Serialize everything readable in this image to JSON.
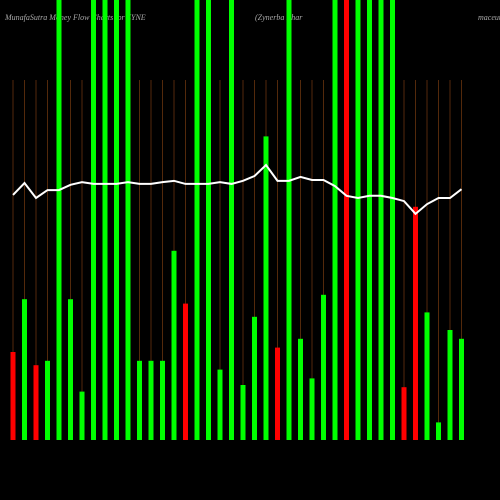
{
  "chart_data": {
    "type": "bar",
    "title": "MunafaSutra Money Flow Charts for ZYNE",
    "subtitle": "(Zynerba Phar",
    "subtitle_end": "maceuticals",
    "categories": [
      null,
      null,
      null,
      null,
      null,
      null,
      null,
      null,
      null,
      null,
      null,
      null,
      null,
      null,
      null,
      null,
      null,
      null,
      null,
      null,
      null,
      null,
      null,
      null,
      null,
      null,
      null,
      null,
      null,
      null,
      null,
      null,
      null,
      null,
      null,
      null,
      null,
      null,
      null,
      null
    ],
    "values": [
      20,
      32,
      17,
      18,
      100,
      32,
      11,
      100,
      100,
      100,
      100,
      18,
      18,
      18,
      43,
      31,
      100,
      100,
      16,
      100,
      12.5,
      28,
      69,
      21,
      100,
      23,
      14,
      33,
      100,
      100,
      100,
      100,
      100,
      100,
      12,
      53,
      29,
      4,
      25,
      23
    ],
    "colors": [
      "#ff0000",
      "#00ff00",
      "#ff0000",
      "#00ff00",
      "#00ff00",
      "#00ff00",
      "#00ff00",
      "#00ff00",
      "#00ff00",
      "#00ff00",
      "#00ff00",
      "#00ff00",
      "#00ff00",
      "#00ff00",
      "#00ff00",
      "#ff0000",
      "#00ff00",
      "#00ff00",
      "#00ff00",
      "#00ff00",
      "#00ff00",
      "#00ff00",
      "#00ff00",
      "#ff0000",
      "#00ff00",
      "#00ff00",
      "#00ff00",
      "#00ff00",
      "#00ff00",
      "#ff0000",
      "#00ff00",
      "#00ff00",
      "#00ff00",
      "#00ff00",
      "#ff0000",
      "#ff0000",
      "#00ff00",
      "#00ff00",
      "#00ff00",
      "#00ff00"
    ],
    "line_values": [
      55.7,
      58.4,
      55,
      56.8,
      56.8,
      58,
      58.6,
      58.2,
      58.2,
      58.2,
      58.6,
      58.2,
      58.2,
      58.6,
      58.9,
      58.2,
      58.2,
      58.2,
      58.6,
      58.2,
      58.9,
      60,
      62.5,
      58.9,
      58.9,
      59.8,
      59.1,
      59.1,
      57.7,
      55.5,
      55,
      55.5,
      55.5,
      55,
      54.3,
      51.4,
      53.6,
      55,
      55,
      57
    ],
    "line_color": "#ffffff",
    "grid_color": "#8b4513",
    "ylim": [
      0,
      100
    ]
  }
}
